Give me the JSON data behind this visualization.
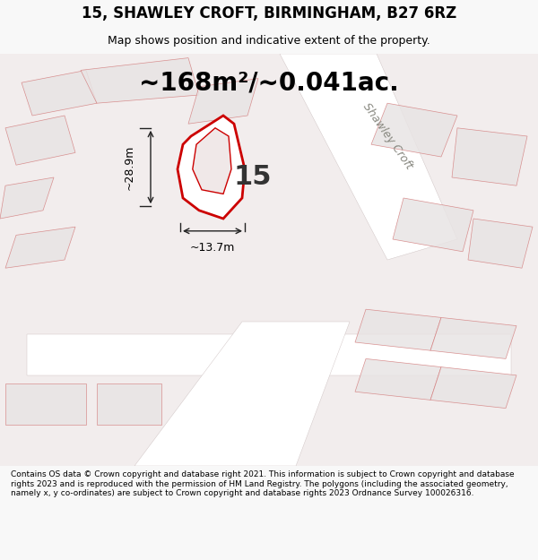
{
  "title_line1": "15, SHAWLEY CROFT, BIRMINGHAM, B27 6RZ",
  "title_line2": "Map shows position and indicative extent of the property.",
  "area_text": "~168m²/~0.041ac.",
  "label_15": "15",
  "dim_width": "~13.7m",
  "dim_height": "~28.9m",
  "footer": "Contains OS data © Crown copyright and database right 2021. This information is subject to Crown copyright and database rights 2023 and is reproduced with the permission of HM Land Registry. The polygons (including the associated geometry, namely x, y co-ordinates) are subject to Crown copyright and database rights 2023 Ordnance Survey 100026316.",
  "bg_color": "#f0eeee",
  "map_bg": "#f5f0f0",
  "road_color": "#ffffff",
  "plot_outline_color": "#cc0000",
  "plot_fill_color": "#ffffff",
  "building_fill": "#e8e0e0",
  "building_outline": "#cc3333",
  "street_label": "Shawley Croft",
  "fig_width": 6.0,
  "fig_height": 6.25,
  "dpi": 100
}
